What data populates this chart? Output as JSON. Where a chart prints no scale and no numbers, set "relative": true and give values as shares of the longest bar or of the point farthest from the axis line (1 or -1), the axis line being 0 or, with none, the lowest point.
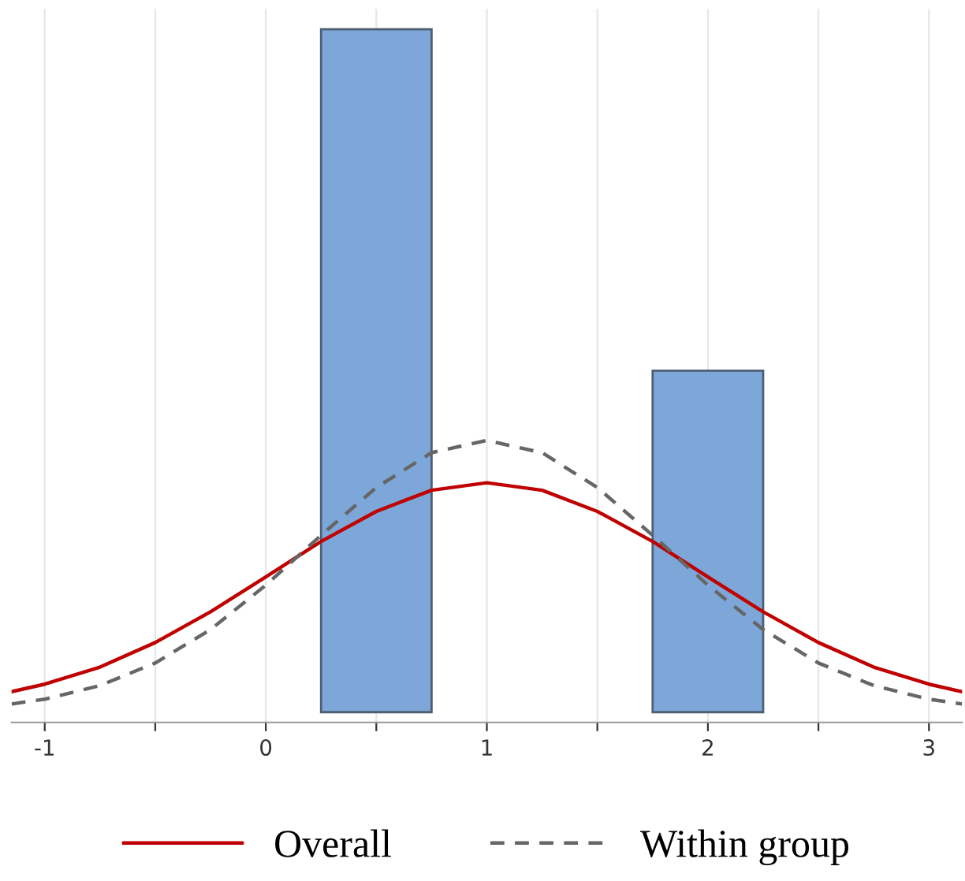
{
  "chart_data": {
    "type": "histogram",
    "relative": true,
    "bins": [
      0.25,
      0.75,
      1.25,
      1.75,
      2.25
    ],
    "values": [
      1,
      0,
      0,
      0.5
    ],
    "color": "#7da7d9",
    "xlim": [
      -1.15,
      3.15
    ],
    "xticks": [
      {
        "value": -1,
        "label": "-1"
      },
      {
        "value": -0.5,
        "label": null
      },
      0,
      {
        "value": 0.5,
        "label": null
      },
      1,
      {
        "value": 1.5,
        "label": null
      },
      2,
      {
        "value": 2.5,
        "label": null
      },
      3
    ],
    "grid": "x",
    "legend": "bottom",
    "series": [
      {
        "type": "line",
        "name": "Overall",
        "color": "#c00000",
        "line_style": "solid",
        "x": [
          -1.15,
          -1,
          -0.75,
          -0.5,
          -0.25,
          0,
          0.25,
          0.5,
          0.75,
          1,
          1.25,
          1.5,
          1.75,
          2,
          2.25,
          2.5,
          2.75,
          3,
          3.15
        ],
        "values": [
          0.03,
          0.041,
          0.066,
          0.102,
          0.147,
          0.198,
          0.25,
          0.294,
          0.325,
          0.336,
          0.325,
          0.294,
          0.25,
          0.198,
          0.147,
          0.102,
          0.066,
          0.041,
          0.03
        ]
      },
      {
        "type": "line",
        "name": "Within group",
        "color": "#666666",
        "line_style": "dashed",
        "x": [
          -1.15,
          -1,
          -0.75,
          -0.5,
          -0.25,
          0,
          0.25,
          0.5,
          0.75,
          1,
          1.25,
          1.5,
          1.75,
          2,
          2.25,
          2.5,
          2.75,
          3,
          3.15
        ],
        "values": [
          0.012,
          0.019,
          0.039,
          0.072,
          0.121,
          0.186,
          0.259,
          0.329,
          0.38,
          0.398,
          0.38,
          0.329,
          0.259,
          0.186,
          0.121,
          0.072,
          0.039,
          0.019,
          0.012
        ]
      }
    ]
  }
}
